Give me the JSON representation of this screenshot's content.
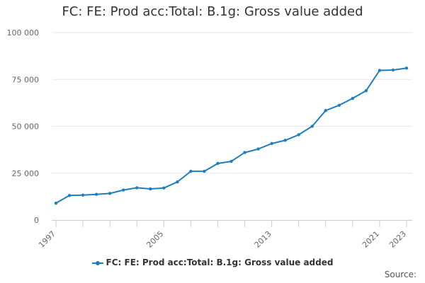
{
  "chart_data": {
    "type": "line",
    "title": "FC: FE: Prod acc:Total: B.1g: Gross value added",
    "x": [
      1997,
      1998,
      1999,
      2000,
      2001,
      2002,
      2003,
      2004,
      2005,
      2006,
      2007,
      2008,
      2009,
      2010,
      2011,
      2012,
      2013,
      2014,
      2015,
      2016,
      2017,
      2018,
      2019,
      2020,
      2021,
      2022,
      2023
    ],
    "x_tick_labels": [
      "1997",
      "2005",
      "2013",
      "2021",
      "2023"
    ],
    "y_tick_labels": [
      "0",
      "25 000",
      "50 000",
      "75 000",
      "100 000"
    ],
    "ylim": [
      0,
      100000
    ],
    "xlim": [
      1997,
      2023
    ],
    "series": [
      {
        "name": "FC: FE: Prod acc:Total: B.1g: Gross value added",
        "color": "#1f7fbe",
        "values": [
          9000,
          13100,
          13300,
          13700,
          14200,
          16000,
          17200,
          16600,
          17100,
          20300,
          26000,
          26000,
          30200,
          31300,
          36000,
          37900,
          40800,
          42500,
          45500,
          50000,
          58400,
          61200,
          64900,
          69000,
          79800,
          80000,
          81000
        ]
      }
    ],
    "grid": true,
    "legend_position": "bottom"
  },
  "footer": {
    "source_label": "Source:"
  }
}
